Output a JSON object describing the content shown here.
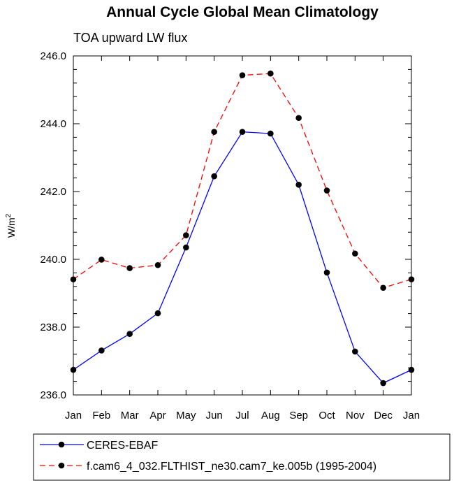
{
  "chart_data": {
    "type": "line",
    "title": "Annual Cycle Global Mean Climatology",
    "subtitle": "TOA upward LW flux",
    "xlabel": "",
    "ylabel": "W/m",
    "ylabel_superscript": "2",
    "categories": [
      "Jan",
      "Feb",
      "Mar",
      "Apr",
      "May",
      "Jun",
      "Jul",
      "Aug",
      "Sep",
      "Oct",
      "Nov",
      "Dec",
      "Jan"
    ],
    "ylim": [
      236.0,
      246.0
    ],
    "yticks": [
      "236.0",
      "238.0",
      "240.0",
      "242.0",
      "244.0",
      "246.0"
    ],
    "grid": false,
    "legend_position": "bottom",
    "series": [
      {
        "name": "CERES-EBAF",
        "color": "#0000ff",
        "line_style": "solid",
        "marker": "filled-circle",
        "values": [
          236.74,
          237.31,
          237.8,
          238.41,
          240.35,
          242.45,
          243.76,
          243.71,
          242.2,
          239.61,
          237.28,
          236.35,
          236.74
        ]
      },
      {
        "name": "f.cam6_4_032.FLTHIST_ne30.cam7_ke.005b (1995-2004)",
        "color": "#ff0000",
        "line_style": "dashed",
        "marker": "filled-circle",
        "values": [
          239.41,
          239.99,
          239.74,
          239.83,
          240.71,
          243.76,
          245.43,
          245.48,
          244.17,
          242.03,
          240.17,
          239.16,
          239.41
        ]
      }
    ]
  }
}
